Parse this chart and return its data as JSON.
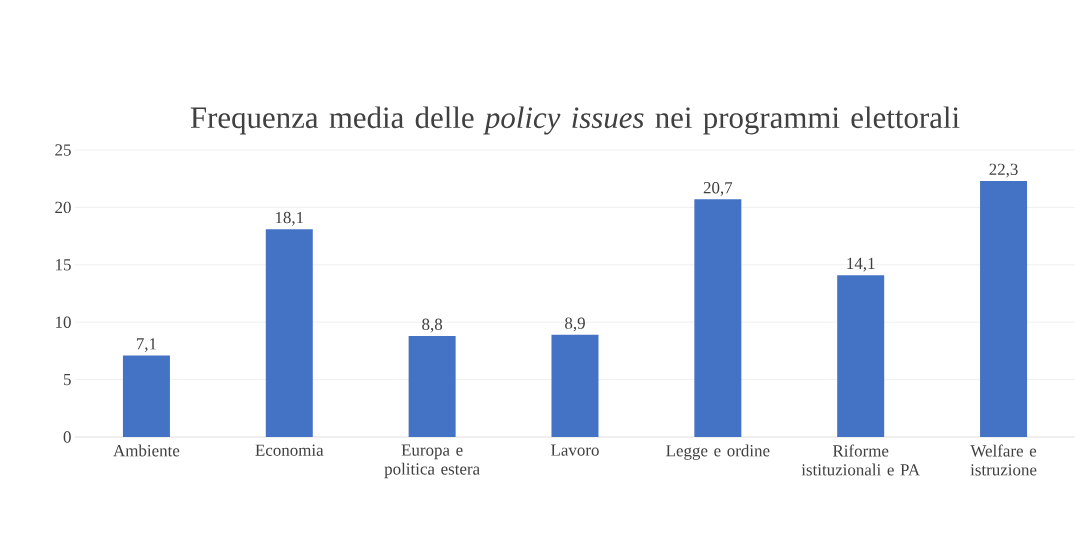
{
  "chart_data": {
    "type": "bar",
    "title": "Frequenza media delle *policy issues* nei programmi elettorali",
    "categories": [
      "Ambiente",
      "Economia",
      "Europa e politica estera",
      "Lavoro",
      "Legge e ordine",
      "Riforme istituzionali e PA",
      "Welfare e istruzione"
    ],
    "values": [
      7.1,
      18.1,
      8.8,
      8.9,
      20.7,
      14.1,
      22.3
    ],
    "value_labels": [
      "7,1",
      "18,1",
      "8,8",
      "8,9",
      "20,7",
      "14,1",
      "22,3"
    ],
    "color": "#4472c4",
    "ylim": [
      0,
      25
    ],
    "yticks": [
      0,
      5,
      10,
      15,
      20,
      25
    ],
    "grid": "y"
  }
}
